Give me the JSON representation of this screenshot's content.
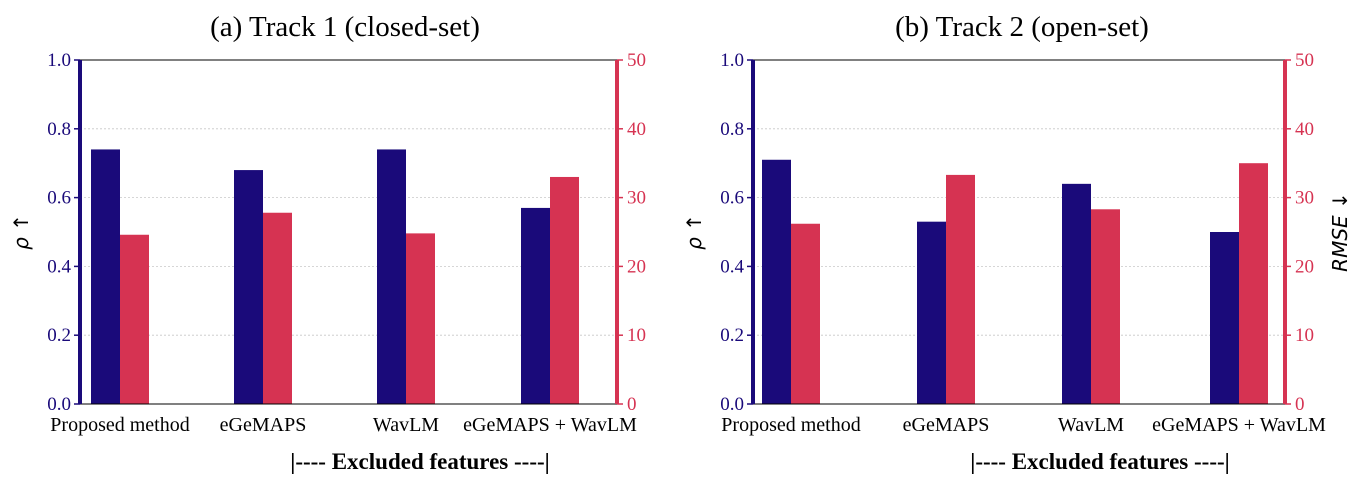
{
  "colors": {
    "left_axis": "#1a0a7a",
    "right_axis": "#d63352",
    "grid": "#c8c8c8"
  },
  "chart_data": [
    {
      "type": "bar",
      "title": "(a) Track 1 (closed-set)",
      "xlabel": "|---- Excluded features ----|",
      "ylabel_left": "ρ ↑",
      "ylabel_right": "",
      "categories": [
        "Proposed method",
        "eGeMAPS",
        "WavLM",
        "eGeMAPS + WavLM"
      ],
      "ylim_left": [
        0.0,
        1.0
      ],
      "ylim_right": [
        0,
        50
      ],
      "yticks_left": [
        "0.0",
        "0.2",
        "0.4",
        "0.6",
        "0.8",
        "1.0"
      ],
      "yticks_right": [
        "0",
        "10",
        "20",
        "30",
        "40",
        "50"
      ],
      "series": [
        {
          "axis": "left",
          "color": "#1a0a7a",
          "values": [
            0.74,
            0.68,
            0.74,
            0.57
          ]
        },
        {
          "axis": "right",
          "color": "#d63352",
          "values": [
            24.6,
            27.8,
            24.8,
            33.0
          ]
        }
      ],
      "grid": "horizontal dotted"
    },
    {
      "type": "bar",
      "title": "(b) Track 2 (open-set)",
      "xlabel": "|---- Excluded features ----|",
      "ylabel_left": "ρ ↑",
      "ylabel_right": "RMSE ↓",
      "categories": [
        "Proposed method",
        "eGeMAPS",
        "WavLM",
        "eGeMAPS + WavLM"
      ],
      "ylim_left": [
        0.0,
        1.0
      ],
      "ylim_right": [
        0,
        50
      ],
      "yticks_left": [
        "0.0",
        "0.2",
        "0.4",
        "0.6",
        "0.8",
        "1.0"
      ],
      "yticks_right": [
        "0",
        "10",
        "20",
        "30",
        "40",
        "50"
      ],
      "series": [
        {
          "axis": "left",
          "color": "#1a0a7a",
          "values": [
            0.71,
            0.53,
            0.64,
            0.5
          ]
        },
        {
          "axis": "right",
          "color": "#d63352",
          "values": [
            26.2,
            33.3,
            28.3,
            35.0
          ]
        }
      ],
      "grid": "horizontal dotted"
    }
  ]
}
